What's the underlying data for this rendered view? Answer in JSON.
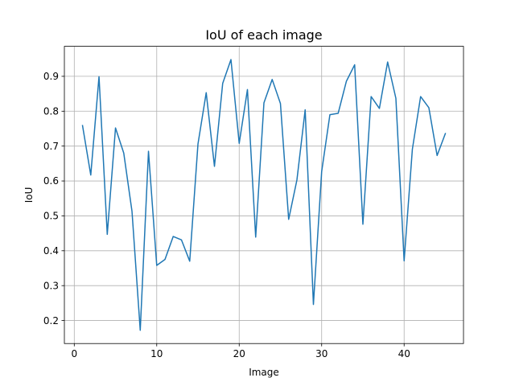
{
  "chart_data": {
    "type": "line",
    "title": "IoU of each image",
    "xlabel": "Image",
    "ylabel": "IoU",
    "xlim": [
      -1.2,
      47.2
    ],
    "ylim": [
      0.134,
      0.986
    ],
    "xticks": [
      0,
      10,
      20,
      30,
      40
    ],
    "yticks": [
      0.2,
      0.3,
      0.4,
      0.5,
      0.6,
      0.7,
      0.8,
      0.9
    ],
    "grid": true,
    "series_color": "#1f77b4",
    "series": [
      {
        "x": [
          1,
          2,
          3,
          4,
          5,
          6,
          7,
          8,
          9,
          10,
          11,
          12,
          13,
          14,
          15,
          16,
          17,
          18,
          19,
          20,
          21,
          22,
          23,
          24,
          25,
          26,
          27,
          28,
          29,
          30,
          31,
          32,
          33,
          34,
          35,
          36,
          37,
          38,
          39,
          40,
          41,
          42,
          43,
          44,
          45
        ],
        "values": [
          0.759,
          0.617,
          0.899,
          0.447,
          0.752,
          0.68,
          0.513,
          0.172,
          0.685,
          0.358,
          0.375,
          0.441,
          0.431,
          0.37,
          0.706,
          0.853,
          0.642,
          0.88,
          0.948,
          0.708,
          0.862,
          0.439,
          0.824,
          0.891,
          0.822,
          0.49,
          0.603,
          0.804,
          0.246,
          0.627,
          0.79,
          0.794,
          0.886,
          0.933,
          0.476,
          0.842,
          0.808,
          0.941,
          0.837,
          0.371,
          0.691,
          0.842,
          0.81,
          0.673,
          0.736
        ]
      }
    ]
  }
}
